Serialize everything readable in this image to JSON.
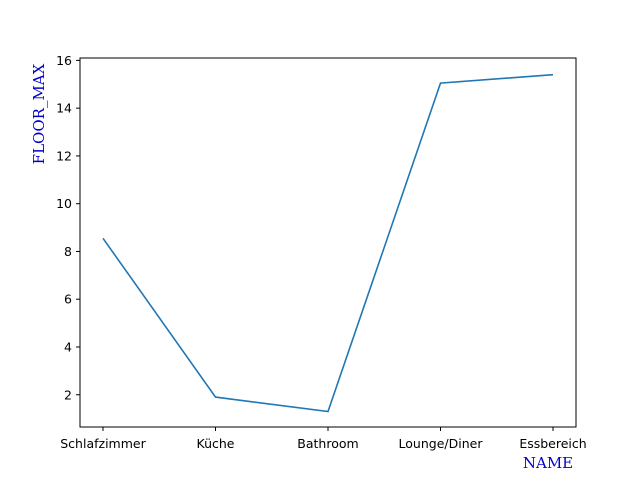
{
  "chart_data": {
    "type": "line",
    "title": "",
    "xlabel": "NAME",
    "ylabel": "FLOOR_MAX",
    "categories": [
      "Schlafzimmer",
      "Küche",
      "Bathroom",
      "Lounge/Diner",
      "Essbereich"
    ],
    "values": [
      8.55,
      1.9,
      1.3,
      15.05,
      15.4
    ],
    "ylim": [
      0.65,
      16.1
    ],
    "yticks": [
      "2",
      "4",
      "6",
      "8",
      "10",
      "12",
      "14",
      "16"
    ],
    "grid": false,
    "line_color": "#1f77b4",
    "axis_title_color": "#0000cc"
  }
}
